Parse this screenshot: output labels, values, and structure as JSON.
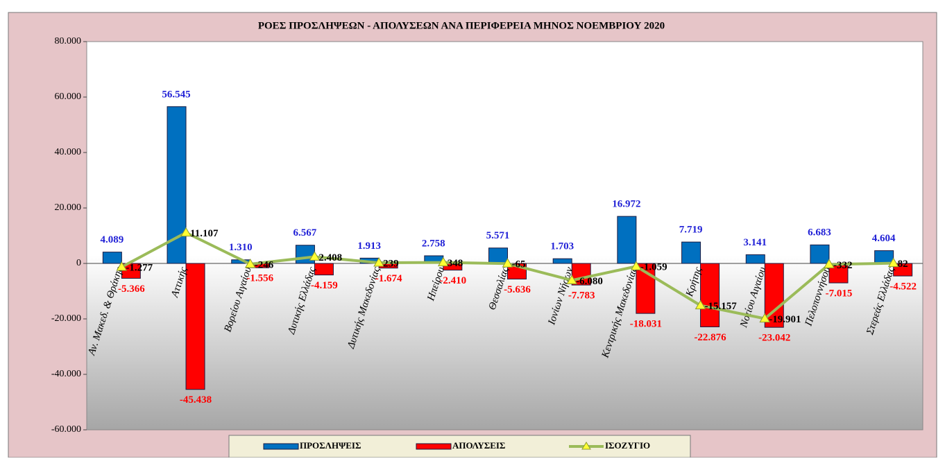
{
  "chart_data": {
    "type": "bar-line",
    "title": "ΡΟΕΣ ΠΡΟΣΛΗΨΕΩΝ - ΑΠΟΛΥΣΕΩΝ ΑΝΑ ΠΕΡΙΦΕΡΕΙΑ ΜΗΝΟΣ ΝΟΕΜΒΡΙΟΥ 2020",
    "categories": [
      "Αν. Μακεδ. & Θράκης",
      "Αττικής",
      "Βορείου Αιγαίου",
      "Δυτικής Ελλάδας",
      "Δυτικής Μακεδονίας",
      "Ηπείρου",
      "Θεσσαλίας",
      "Ιονίων Νήσων",
      "Κεντρικής Μακεδονίας",
      "Κρήτης",
      "Νοτίου Αιγαίου",
      "Πελοποννήσου",
      "Στερεάς Ελλάδας"
    ],
    "series": [
      {
        "name": "ΠΡΟΣΛΗΨΕΙΣ",
        "type": "bar",
        "color": "#0070c0",
        "label_color": "#1f1fd6",
        "values": [
          4089,
          56545,
          1310,
          6567,
          1913,
          2758,
          5571,
          1703,
          16972,
          7719,
          3141,
          6683,
          4604
        ],
        "value_labels": [
          "4.089",
          "56.545",
          "1.310",
          "6.567",
          "1.913",
          "2.758",
          "5.571",
          "1.703",
          "16.972",
          "7.719",
          "3.141",
          "6.683",
          "4.604"
        ]
      },
      {
        "name": "ΑΠΟΛΥΣΕΙΣ",
        "type": "bar",
        "color": "#ff0000",
        "label_color": "#ff0000",
        "values": [
          -5366,
          -45438,
          -1556,
          -4159,
          -1674,
          -2410,
          -5636,
          -7783,
          -18031,
          -22876,
          -23042,
          -7015,
          -4522
        ],
        "value_labels": [
          "-5.366",
          "-45.438",
          "-1.556",
          "-4.159",
          "-1.674",
          "-2.410",
          "-5.636",
          "-7.783",
          "-18.031",
          "-22.876",
          "-23.042",
          "-7.015",
          "-4.522"
        ]
      },
      {
        "name": "ΙΣΟΖΥΓΙΟ",
        "type": "line",
        "color": "#9bbb59",
        "marker_color": "#ffff33",
        "label_color": "#000000",
        "values": [
          -1277,
          11107,
          -246,
          2408,
          239,
          348,
          -65,
          -6080,
          -1059,
          -15157,
          -19901,
          -332,
          82
        ],
        "value_labels": [
          "-1.277",
          "11.107",
          "-246",
          "2.408",
          "239",
          "348",
          "-65",
          "-6.080",
          "-1.059",
          "-15.157",
          "-19.901",
          "-332",
          "82"
        ]
      }
    ],
    "ylim": [
      -60000,
      80000
    ],
    "yticks": [
      {
        "value": -60000,
        "label": "-60.000"
      },
      {
        "value": -40000,
        "label": "-40.000"
      },
      {
        "value": -20000,
        "label": "-20.000"
      },
      0,
      {
        "value": 20000,
        "label": "20.000"
      },
      {
        "value": 40000,
        "label": "40.000"
      },
      {
        "value": 60000,
        "label": "60.000"
      },
      {
        "value": 80000,
        "label": "80.000"
      }
    ],
    "legend": "bottom"
  }
}
